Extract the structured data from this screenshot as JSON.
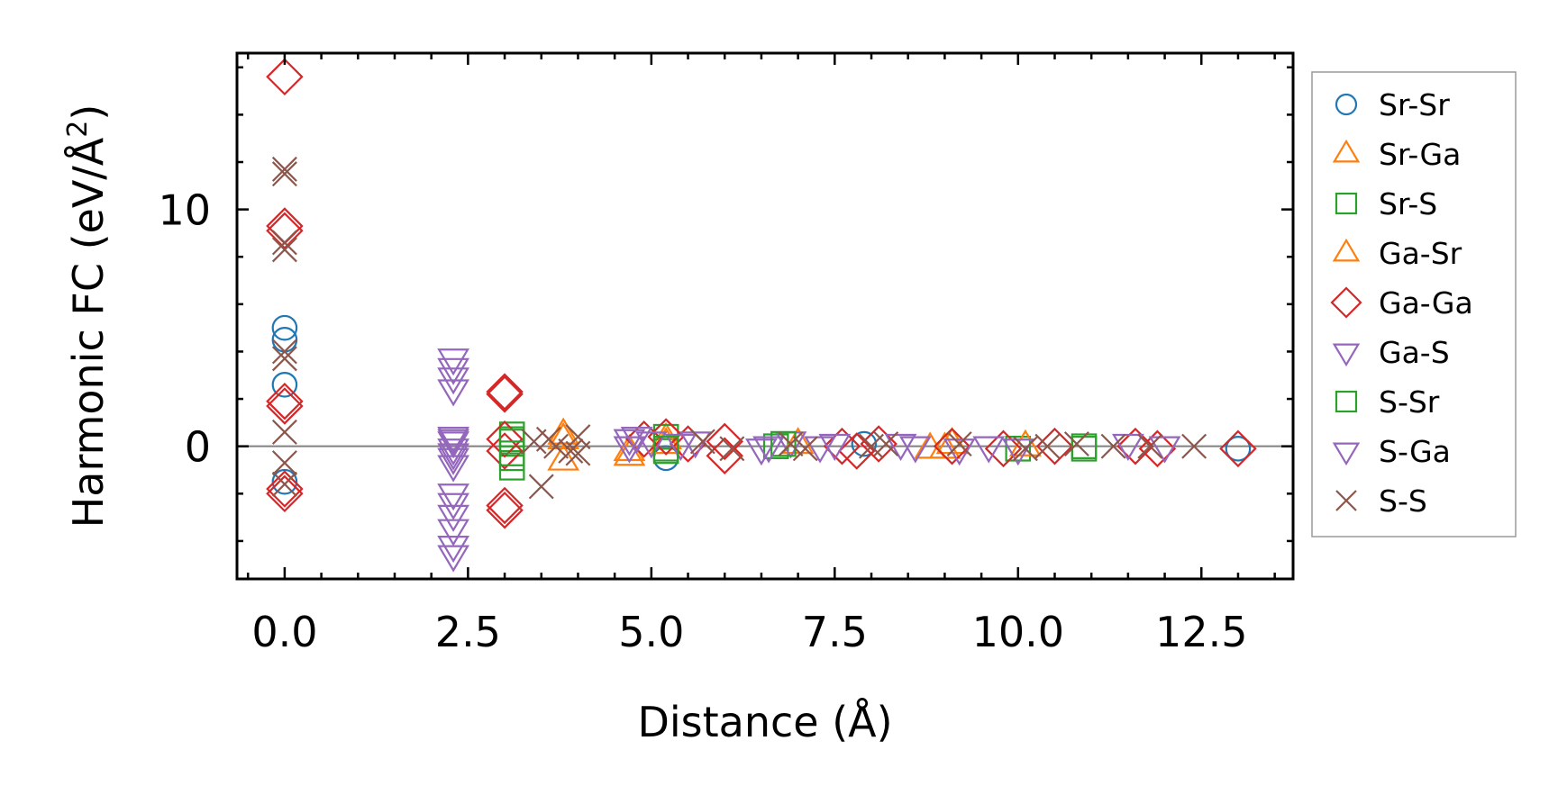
{
  "chart_data": {
    "type": "scatter",
    "title": "",
    "xlabel": "Distance (Å)",
    "ylabel_main": "Harmonic FC (eV/Å",
    "ylabel_sup": "2",
    "ylabel_close": ")",
    "ylabel_full": "Harmonic FC (eV/Å²)",
    "xlim": [
      -0.65,
      13.75
    ],
    "ylim": [
      -5.6,
      16.6
    ],
    "x_ticks": [
      0.0,
      2.5,
      5.0,
      7.5,
      10.0,
      12.5
    ],
    "x_tick_labels": [
      "0.0",
      "2.5",
      "5.0",
      "7.5",
      "10.0",
      "12.5"
    ],
    "y_ticks": [
      0,
      10
    ],
    "y_tick_labels": [
      "0",
      "10"
    ],
    "zero_line": true,
    "grid": false,
    "legend_position": "outside-right",
    "series": [
      {
        "name": "Sr-Sr",
        "marker": "circle",
        "color": "#1f77b4",
        "points": [
          [
            0,
            5.0
          ],
          [
            0,
            4.5
          ],
          [
            0,
            2.6
          ],
          [
            0,
            -1.5
          ],
          [
            5.2,
            -0.5
          ],
          [
            7.9,
            0.1
          ],
          [
            13.0,
            -0.1
          ]
        ]
      },
      {
        "name": "Sr-Ga",
        "marker": "triangle-up",
        "color": "#ff7f0e",
        "points": [
          [
            3.8,
            0.5
          ],
          [
            3.8,
            -0.6
          ],
          [
            4.7,
            -0.4
          ],
          [
            5.2,
            0.3
          ],
          [
            8.8,
            -0.1
          ],
          [
            9.1,
            0.1
          ]
        ]
      },
      {
        "name": "Sr-S",
        "marker": "square",
        "color": "#2ca02c",
        "points": [
          [
            3.1,
            0.5
          ],
          [
            3.1,
            0.3
          ],
          [
            3.1,
            -0.5
          ],
          [
            3.1,
            -0.9
          ],
          [
            5.2,
            0.4
          ],
          [
            5.2,
            -0.2
          ],
          [
            6.7,
            0.0
          ],
          [
            10.0,
            -0.1
          ],
          [
            10.9,
            0.0
          ]
        ]
      },
      {
        "name": "Ga-Sr",
        "marker": "triangle-up",
        "color": "#ff7f0e",
        "points": [
          [
            3.8,
            0.3
          ],
          [
            4.7,
            -0.2
          ],
          [
            5.2,
            0.1
          ],
          [
            7.0,
            0.1
          ],
          [
            9.0,
            -0.1
          ],
          [
            10.1,
            0.0
          ]
        ]
      },
      {
        "name": "Ga-Ga",
        "marker": "diamond",
        "color": "#d62728",
        "points": [
          [
            0,
            15.6
          ],
          [
            0,
            9.3
          ],
          [
            0,
            9.1
          ],
          [
            0,
            1.9
          ],
          [
            0,
            1.7
          ],
          [
            0,
            -1.8
          ],
          [
            0,
            -2.0
          ],
          [
            3.0,
            2.3
          ],
          [
            3.0,
            2.2
          ],
          [
            3.0,
            -2.5
          ],
          [
            3.0,
            -2.7
          ],
          [
            3.0,
            0.3
          ],
          [
            3.0,
            -0.2
          ],
          [
            4.9,
            0.3
          ],
          [
            5.2,
            0.4
          ],
          [
            5.5,
            0.1
          ],
          [
            6.0,
            -0.4
          ],
          [
            6.0,
            0.2
          ],
          [
            7.6,
            0.0
          ],
          [
            7.8,
            -0.2
          ],
          [
            8.1,
            0.1
          ],
          [
            9.1,
            0.0
          ],
          [
            9.8,
            -0.1
          ],
          [
            10.5,
            0.0
          ],
          [
            11.6,
            0.0
          ],
          [
            11.9,
            -0.1
          ],
          [
            13.0,
            -0.1
          ]
        ]
      },
      {
        "name": "Ga-S",
        "marker": "triangle-down",
        "color": "#9467bd",
        "points": [
          [
            2.3,
            3.7
          ],
          [
            2.3,
            3.3
          ],
          [
            2.3,
            2.9
          ],
          [
            2.3,
            2.4
          ],
          [
            2.3,
            0.4
          ],
          [
            2.3,
            0.2
          ],
          [
            2.3,
            -0.1
          ],
          [
            2.3,
            -0.5
          ],
          [
            2.3,
            -2.0
          ],
          [
            2.3,
            -2.4
          ],
          [
            2.3,
            -2.9
          ],
          [
            2.3,
            -3.5
          ],
          [
            2.3,
            -4.2
          ],
          [
            2.3,
            -4.6
          ],
          [
            4.7,
            0.3
          ],
          [
            4.7,
            0.0
          ],
          [
            5.0,
            0.2
          ],
          [
            5.4,
            0.1
          ],
          [
            6.5,
            -0.1
          ],
          [
            6.9,
            0.2
          ],
          [
            7.3,
            0.0
          ],
          [
            8.4,
            0.1
          ],
          [
            9.2,
            -0.1
          ],
          [
            9.6,
            0.0
          ],
          [
            11.5,
            0.1
          ],
          [
            12.0,
            0.0
          ]
        ]
      },
      {
        "name": "S-Sr",
        "marker": "square",
        "color": "#2ca02c",
        "points": [
          [
            3.1,
            0.2
          ],
          [
            3.1,
            -0.3
          ],
          [
            5.2,
            -0.1
          ],
          [
            6.8,
            0.1
          ],
          [
            10.9,
            -0.1
          ]
        ]
      },
      {
        "name": "S-Ga",
        "marker": "triangle-down",
        "color": "#9467bd",
        "points": [
          [
            2.3,
            0.3
          ],
          [
            2.3,
            -0.3
          ],
          [
            2.3,
            -0.8
          ],
          [
            4.8,
            0.4
          ],
          [
            5.6,
            0.2
          ],
          [
            6.6,
            0.0
          ],
          [
            7.5,
            0.1
          ],
          [
            8.6,
            0.0
          ],
          [
            10.0,
            -0.1
          ]
        ]
      },
      {
        "name": "S-S",
        "marker": "x",
        "color": "#8c564b",
        "points": [
          [
            0,
            11.7
          ],
          [
            0,
            11.5
          ],
          [
            0,
            8.6
          ],
          [
            0,
            8.3
          ],
          [
            0,
            4.0
          ],
          [
            0,
            3.7
          ],
          [
            0,
            0.6
          ],
          [
            0,
            -0.7
          ],
          [
            0,
            -1.6
          ],
          [
            3.4,
            0.2
          ],
          [
            3.5,
            -1.7
          ],
          [
            3.6,
            0.3
          ],
          [
            3.7,
            0.0
          ],
          [
            3.9,
            -0.2
          ],
          [
            4.0,
            0.4
          ],
          [
            4.0,
            -0.3
          ],
          [
            5.7,
            0.2
          ],
          [
            6.1,
            -0.1
          ],
          [
            6.9,
            0.1
          ],
          [
            7.1,
            -0.1
          ],
          [
            8.0,
            0.0
          ],
          [
            8.2,
            0.1
          ],
          [
            9.2,
            0.1
          ],
          [
            10.1,
            -0.1
          ],
          [
            10.4,
            0.0
          ],
          [
            10.8,
            0.1
          ],
          [
            11.3,
            0.0
          ],
          [
            11.8,
            0.0
          ],
          [
            12.4,
            0.0
          ]
        ]
      }
    ]
  }
}
